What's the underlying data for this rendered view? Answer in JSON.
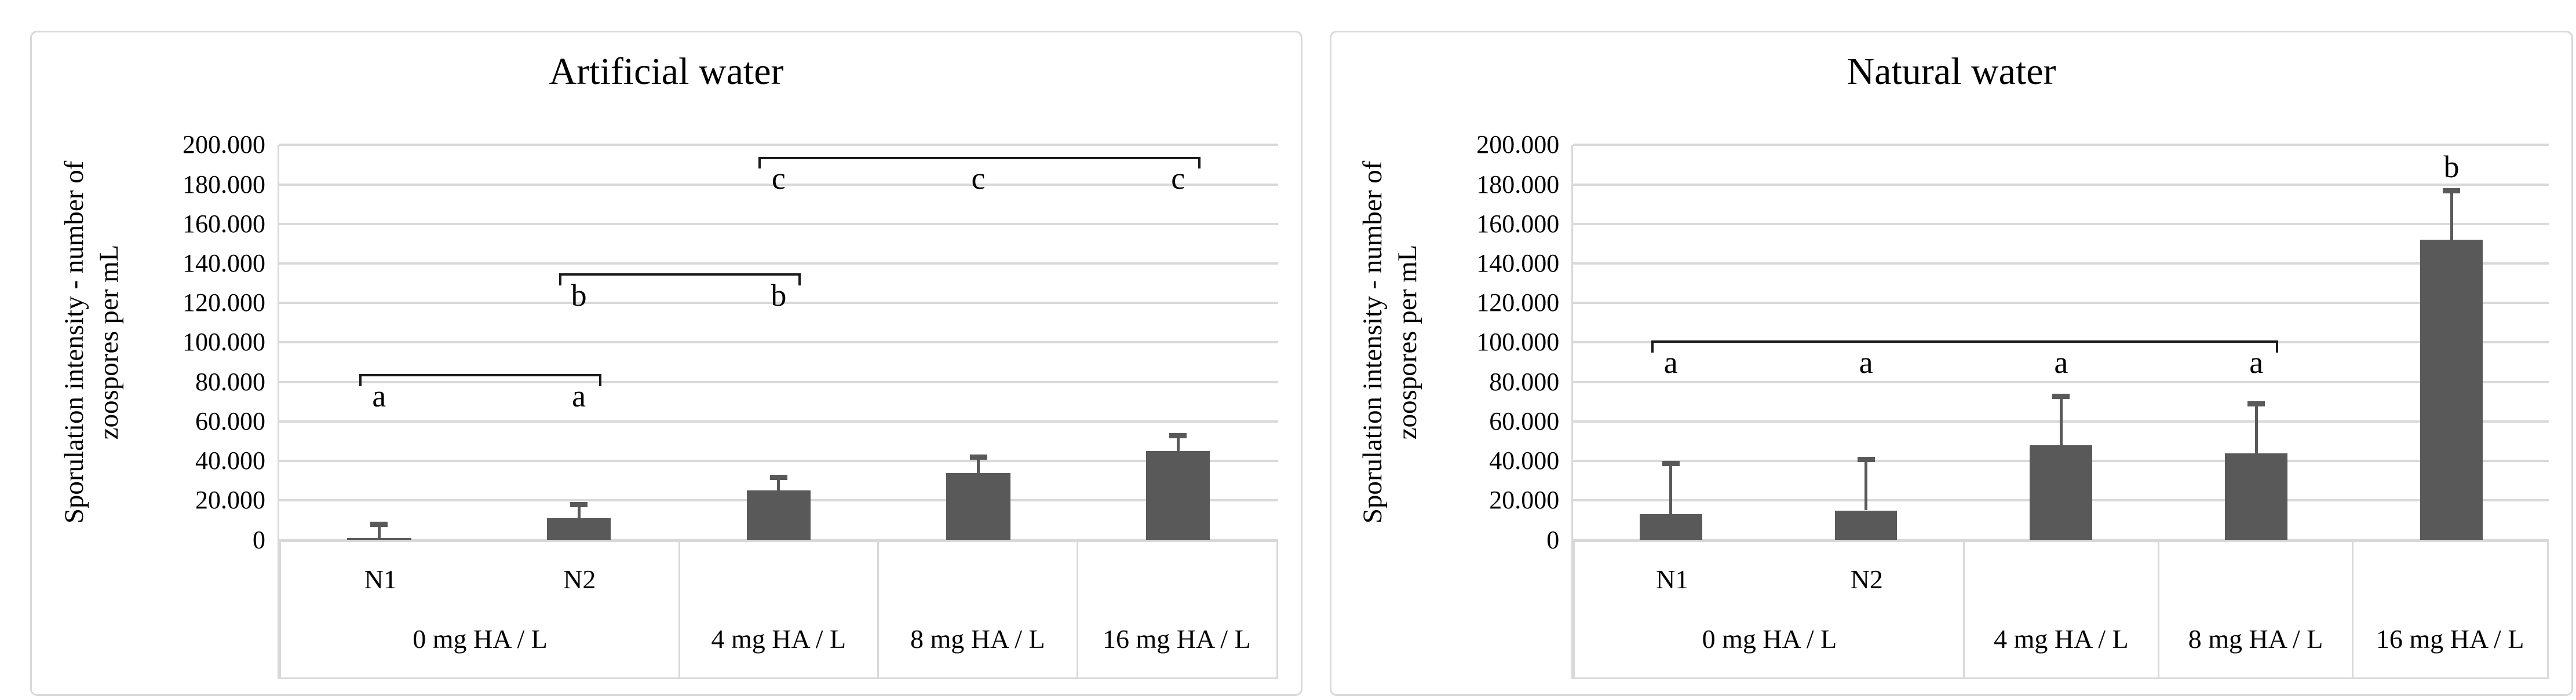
{
  "figure": {
    "background": "#ffffff",
    "bar_color": "#595959",
    "error_bar_color": "#595959",
    "gridline_color": "#d9d9d9",
    "axis_line_color": "#d9d9d9",
    "bracket_color": "#1a1a1a",
    "text_color": "#000000"
  },
  "chart_data": [
    {
      "type": "bar",
      "title": "Artificial water",
      "ylabel_lines": [
        "Sporulation intensity - number of",
        "zoospores per mL"
      ],
      "ylim": [
        0,
        200000
      ],
      "ytick_step": 20000,
      "ytick_labels": [
        "0",
        "20.000",
        "40.000",
        "60.000",
        "80.000",
        "100.000",
        "120.000",
        "140.000",
        "160.000",
        "180.000",
        "200.000"
      ],
      "grid": true,
      "legend": "none",
      "categories": [
        "N1",
        "N2",
        "4 mg HA / L",
        "8 mg HA / L",
        "16 mg HA / L"
      ],
      "category_groups": [
        {
          "label": "0 mg HA / L",
          "sublabels": [
            "N1",
            "N2"
          ],
          "span": 2
        },
        {
          "label": "4 mg HA / L",
          "sublabels": [],
          "span": 1
        },
        {
          "label": "8 mg HA / L",
          "sublabels": [],
          "span": 1
        },
        {
          "label": "16 mg HA / L",
          "sublabels": [],
          "span": 1
        }
      ],
      "values": [
        1000,
        11000,
        25000,
        34000,
        45000
      ],
      "error_top": [
        8000,
        18000,
        32000,
        42000,
        53000
      ],
      "significance": [
        {
          "kind": "bracket",
          "from": 0,
          "to": 1,
          "level": 84000,
          "letter": "a",
          "letter_at": [
            0,
            1
          ]
        },
        {
          "kind": "bracket",
          "from": 1,
          "to": 2,
          "level": 135000,
          "letter": "b",
          "letter_at": [
            1,
            2
          ]
        },
        {
          "kind": "bracket",
          "from": 2,
          "to": 4,
          "level": 194000,
          "letter": "c",
          "letter_at": [
            2,
            3,
            4
          ]
        }
      ]
    },
    {
      "type": "bar",
      "title": "Natural water",
      "ylabel_lines": [
        "Sporulation intensity - number of",
        "zoospores per mL"
      ],
      "ylim": [
        0,
        200000
      ],
      "ytick_step": 20000,
      "ytick_labels": [
        "0",
        "20.000",
        "40.000",
        "60.000",
        "80.000",
        "100.000",
        "120.000",
        "140.000",
        "160.000",
        "180.000",
        "200.000"
      ],
      "grid": true,
      "legend": "none",
      "categories": [
        "N1",
        "N2",
        "4 mg HA / L",
        "8 mg HA / L",
        "16 mg HA / L"
      ],
      "category_groups": [
        {
          "label": "0 mg HA / L",
          "sublabels": [
            "N1",
            "N2"
          ],
          "span": 2
        },
        {
          "label": "4 mg HA / L",
          "sublabels": [],
          "span": 1
        },
        {
          "label": "8 mg HA / L",
          "sublabels": [],
          "span": 1
        },
        {
          "label": "16 mg HA / L",
          "sublabels": [],
          "span": 1
        }
      ],
      "values": [
        13000,
        15000,
        48000,
        44000,
        152000
      ],
      "error_top": [
        39000,
        41000,
        73000,
        69000,
        177000
      ],
      "significance": [
        {
          "kind": "bracket",
          "from": 0,
          "to": 3,
          "level": 101000,
          "letter": "a",
          "letter_at": [
            0,
            1,
            2,
            3
          ]
        },
        {
          "kind": "letter",
          "at": 4,
          "level": 189000,
          "letter": "b"
        }
      ]
    }
  ]
}
